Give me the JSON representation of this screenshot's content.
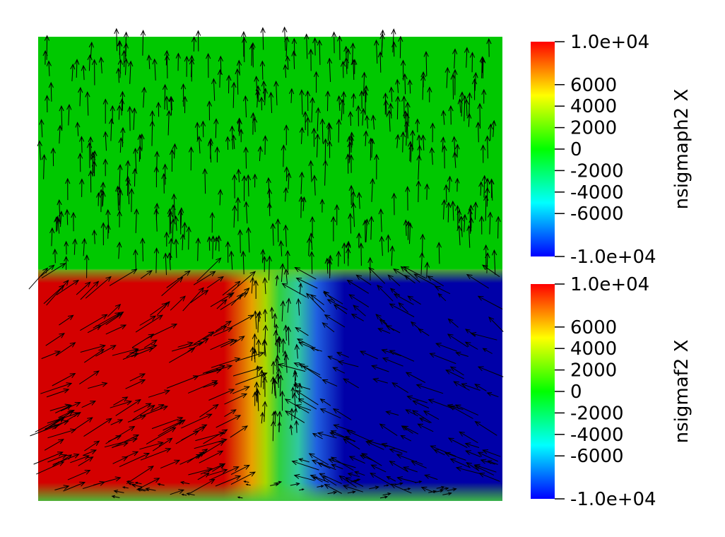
{
  "colorbars": [
    {
      "title": "nsigmaph2 X",
      "ticks": [
        "1.0e+04",
        "6000",
        "4000",
        "2000",
        "0",
        "-2000",
        "-4000",
        "-6000",
        "-1.0e+04"
      ],
      "range": [
        -10000,
        10000
      ]
    },
    {
      "title": "nsigmaf2 X",
      "ticks": [
        "1.0e+04",
        "6000",
        "4000",
        "2000",
        "0",
        "-2000",
        "-4000",
        "-6000",
        "-1.0e+04"
      ],
      "range": [
        -10000,
        10000
      ]
    }
  ],
  "colormap": {
    "name": "rainbow",
    "stops": [
      "#0000ff",
      "#00ffff",
      "#00ff00",
      "#ffff00",
      "#ff0000"
    ]
  },
  "field_colors": {
    "upper": "#00c800",
    "lower_left": "#d40000",
    "lower_right": "#0000a8",
    "glyph": "#000000"
  }
}
